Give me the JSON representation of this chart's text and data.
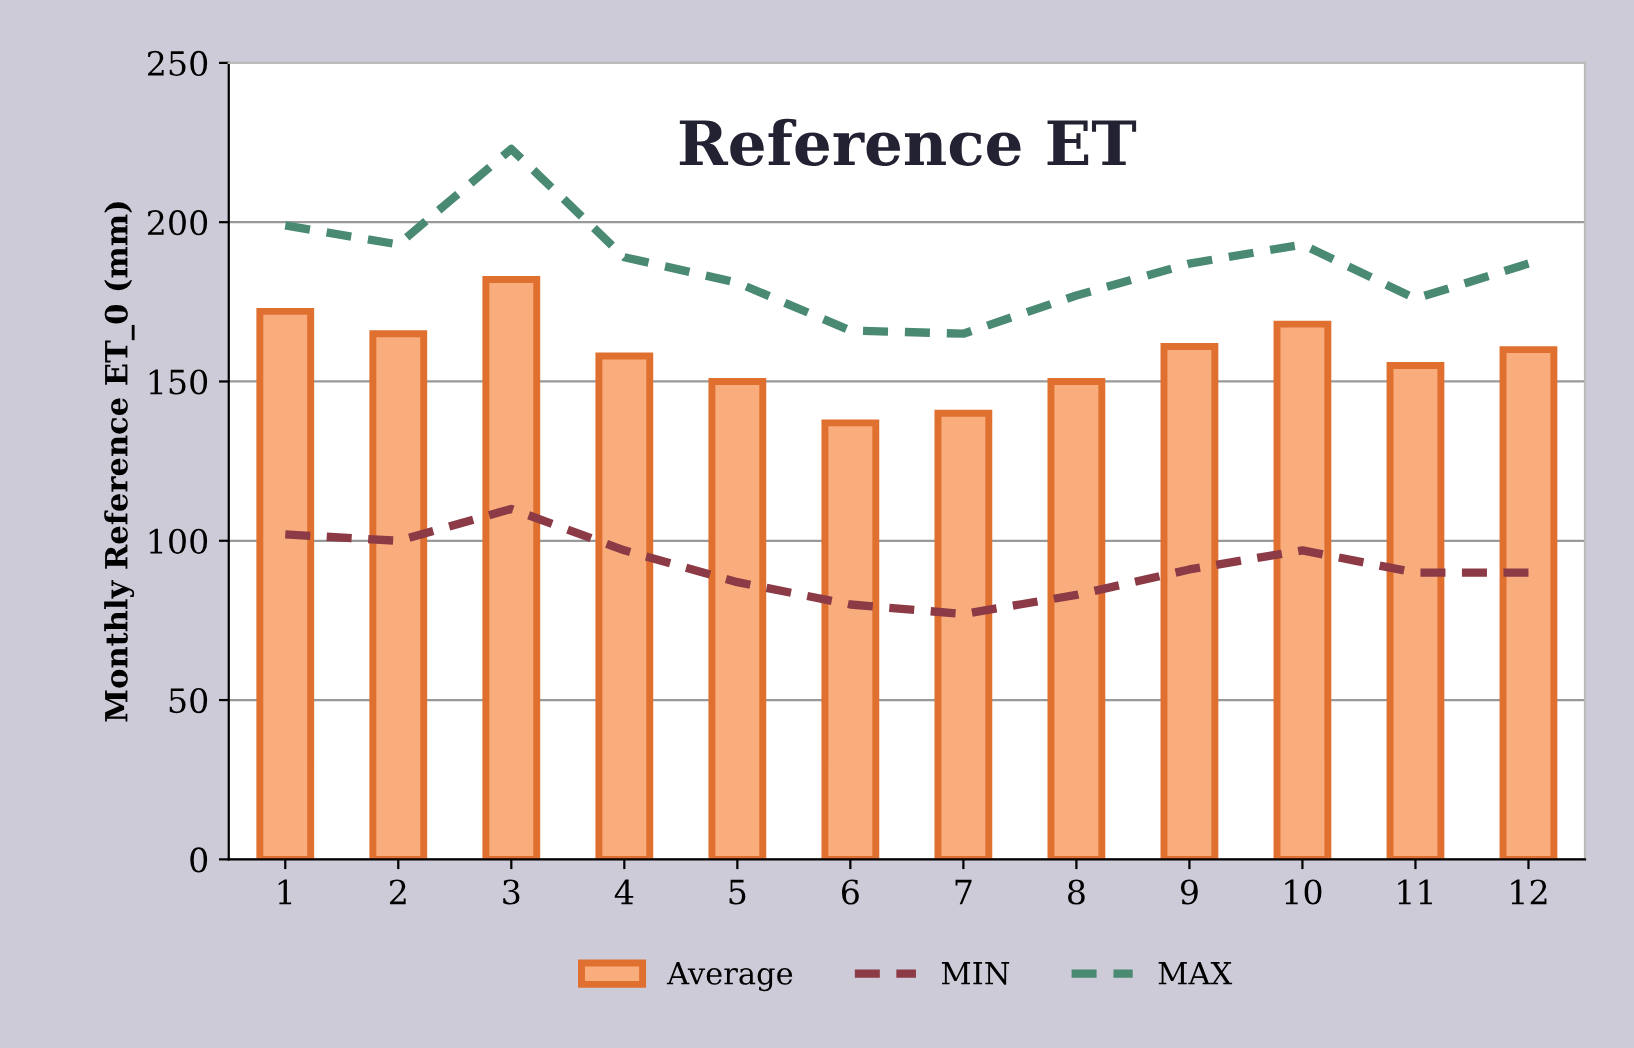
{
  "chart_data": {
    "type": "bar",
    "title": "Reference ET",
    "ylabel": "Monthly Reference ET_0 (mm)",
    "categories": [
      "1",
      "2",
      "3",
      "4",
      "5",
      "6",
      "7",
      "8",
      "9",
      "10",
      "11",
      "12"
    ],
    "series": [
      {
        "name": "Average",
        "color": "#f9ad7c",
        "values": [
          172,
          165,
          182,
          158,
          150,
          137,
          140,
          150,
          161,
          168,
          155,
          160
        ]
      },
      {
        "name": "MIN",
        "type": "line",
        "color": "#8b3a46",
        "line_style": "dashed",
        "values": [
          102,
          100,
          110,
          97,
          87,
          80,
          77,
          83,
          91,
          97,
          90,
          90
        ]
      },
      {
        "name": "MAX",
        "type": "line",
        "color": "#4a8a72",
        "line_style": "dashed",
        "values": [
          199,
          193,
          223,
          189,
          181,
          166,
          165,
          177,
          187,
          193,
          176,
          187
        ]
      }
    ],
    "ylim": [
      0,
      250
    ],
    "yticks": [
      0,
      50,
      100,
      150,
      200,
      250
    ],
    "grid": "y",
    "legend": "bottom",
    "marker": "none"
  }
}
